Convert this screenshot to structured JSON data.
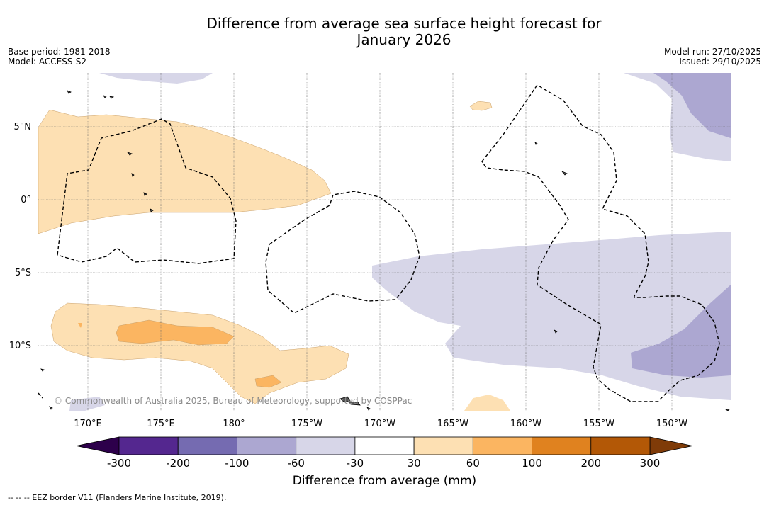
{
  "title_line1": "Difference from average sea surface height forecast for",
  "title_line2": "January 2026",
  "base_period": "Base period: 1981-2018",
  "model": "Model: ACCESS-S2",
  "model_run": "Model run: 27/10/2025",
  "issued": "Issued: 29/10/2025",
  "lat_labels": [
    "5°N",
    "0°",
    "5°S",
    "10°S"
  ],
  "lon_labels": [
    "170°E",
    "175°E",
    "180°",
    "175°W",
    "170°W",
    "165°W",
    "160°W",
    "155°W",
    "150°W"
  ],
  "copyright": "© Commonwealth of Australia 2025, Bureau of Meteorology, supported by COSPPac",
  "colorbar": {
    "ticks": [
      "-300",
      "-200",
      "-100",
      "-60",
      "-30",
      "30",
      "60",
      "100",
      "200",
      "300"
    ],
    "colors": [
      "#54278f",
      "#756bb1",
      "#aca7d1",
      "#d7d6e8",
      "#ffffff",
      "#fde0b3",
      "#fbb561",
      "#e0821f",
      "#b35806"
    ],
    "under_color": "#2d004b",
    "over_color": "#7f3b08",
    "label": "Difference from average (mm)"
  },
  "footer_note": "-- -- -- EEZ border V11 (Flanders Marine Institute, 2019)."
}
